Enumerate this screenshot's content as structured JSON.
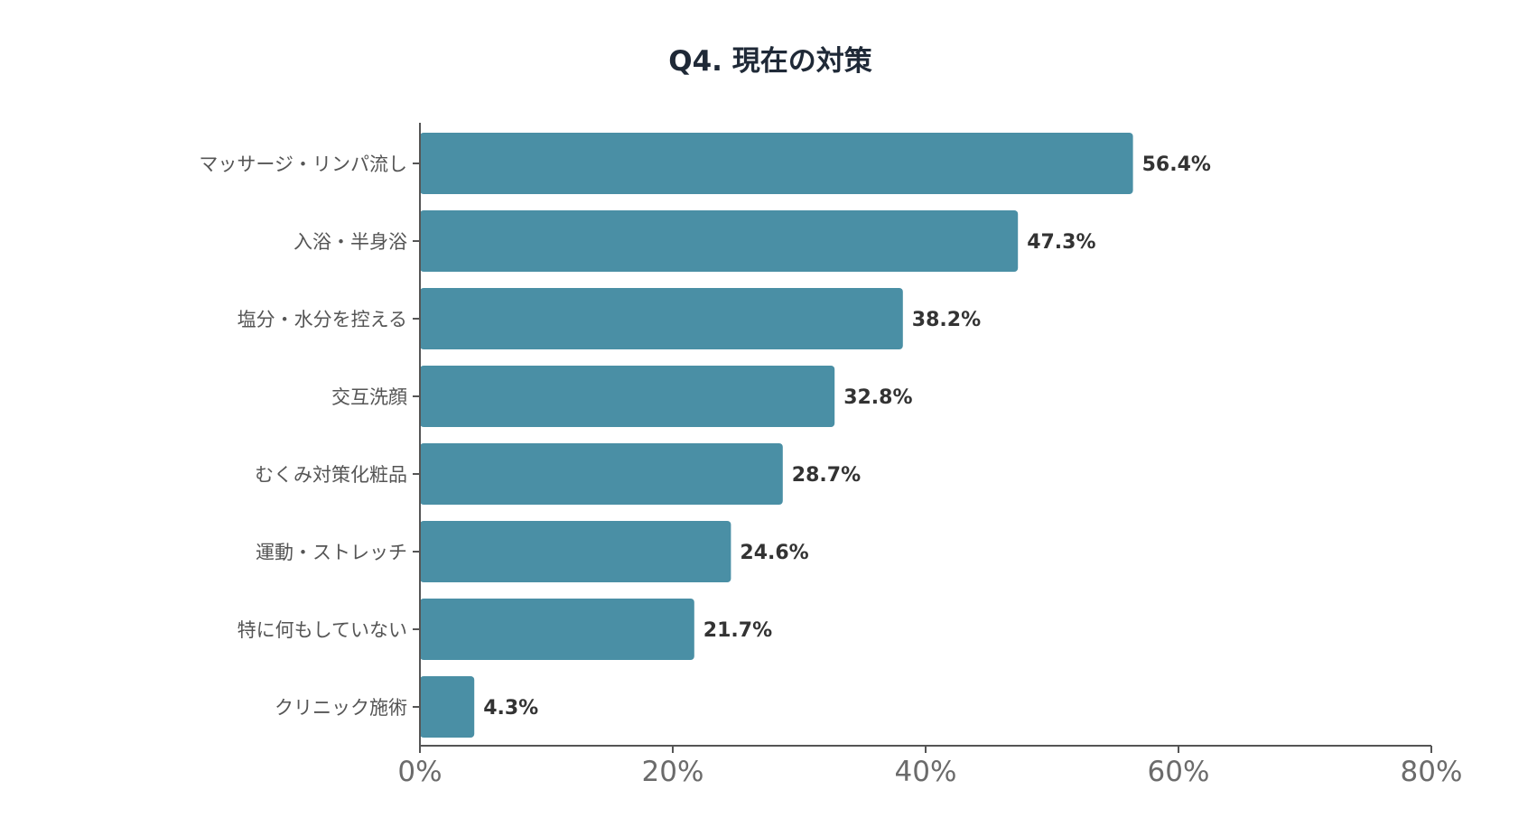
{
  "chart_data": {
    "type": "bar",
    "orientation": "horizontal",
    "title": "Q4. 現在の対策",
    "xlabel": "",
    "ylabel": "",
    "categories": [
      "マッサージ・リンパ流し",
      "入浴・半身浴",
      "塩分・水分を控える",
      "交互洗顔",
      "むくみ対策化粧品",
      "運動・ストレッチ",
      "特に何もしていない",
      "クリニック施術"
    ],
    "values": [
      56.4,
      47.3,
      38.2,
      32.8,
      28.7,
      24.6,
      21.7,
      4.3
    ],
    "value_labels": [
      "56.4%",
      "47.3%",
      "38.2%",
      "32.8%",
      "28.7%",
      "24.6%",
      "21.7%",
      "4.3%"
    ],
    "xlim": [
      0,
      80
    ],
    "x_ticks": [
      0,
      20,
      40,
      60,
      80
    ],
    "x_tick_labels": [
      "0%",
      "20%",
      "40%",
      "60%",
      "80%"
    ],
    "grid": false,
    "legend": "none",
    "bar_color": "#4a8fa5"
  }
}
